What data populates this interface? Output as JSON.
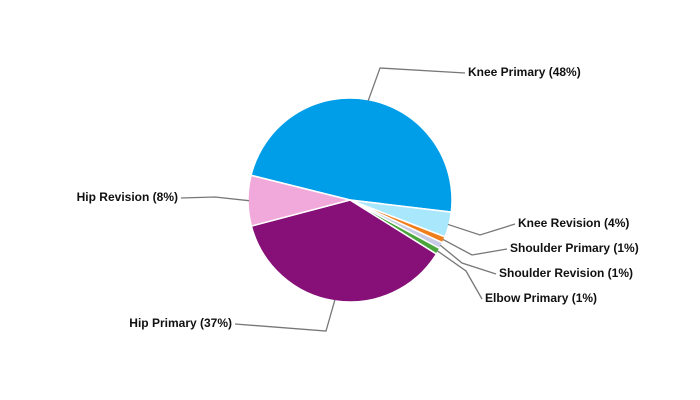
{
  "chart_data": {
    "type": "pie",
    "categories": [
      "Knee Primary (48%)",
      "Knee Revision (4%)",
      "Shoulder Primary (1%)",
      "Shoulder Revision (1%)",
      "Elbow Primary (1%)",
      "Hip Primary (37%)",
      "Hip Revision (8%)"
    ],
    "values": [
      48,
      4,
      1,
      1,
      1,
      37,
      8
    ],
    "colors": [
      "#009ee9",
      "#a9e7fc",
      "#f07f1b",
      "#c7cbe6",
      "#4aa63c",
      "#861077",
      "#f0a9da"
    ]
  }
}
